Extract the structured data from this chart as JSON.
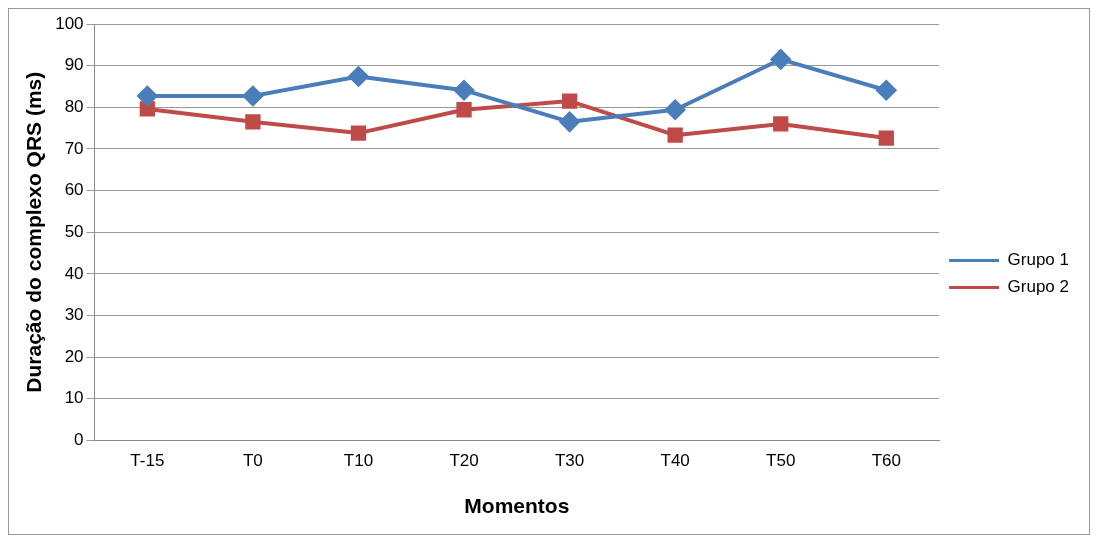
{
  "chart_data": {
    "type": "line",
    "xlabel": "Momentos",
    "ylabel": "Duração do complexo QRS (ms)",
    "categories": [
      "T-15",
      "T0",
      "T10",
      "T20",
      "T30",
      "T40",
      "T50",
      "T60"
    ],
    "series": [
      {
        "name": "Grupo 1",
        "color": "#4a7ebb",
        "marker": "diamond",
        "values": [
          82.7,
          82.7,
          87.4,
          84.1,
          76.5,
          79.4,
          91.5,
          84.1
        ]
      },
      {
        "name": "Grupo 2",
        "color": "#be4b48",
        "marker": "square",
        "values": [
          79.6,
          76.5,
          73.8,
          79.4,
          81.5,
          73.3,
          76.0,
          72.6
        ]
      }
    ],
    "ylim": [
      0,
      100
    ],
    "yticks": [
      0,
      10,
      20,
      30,
      40,
      50,
      60,
      70,
      80,
      90,
      100
    ],
    "grid": "y",
    "legend": "right"
  }
}
